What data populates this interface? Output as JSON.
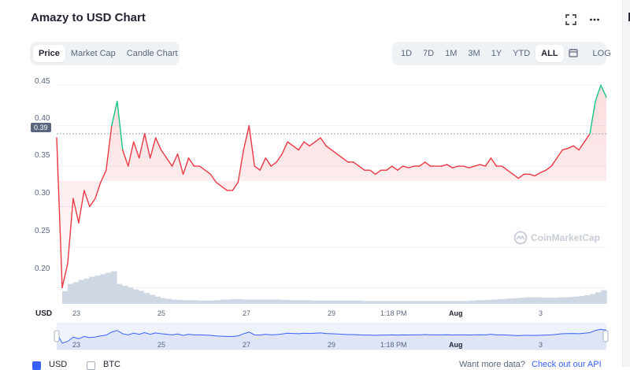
{
  "chart": {
    "title": "Amazy to USD Chart",
    "tabs": [
      "Price",
      "Market Cap",
      "Candle Chart"
    ],
    "active_tab": "Price",
    "ranges": [
      "1D",
      "7D",
      "1M",
      "3M",
      "1Y",
      "YTD",
      "ALL"
    ],
    "active_range": "ALL",
    "log_label": "LOG",
    "current_price_tag": "0.39",
    "currency_axis_label": "USD",
    "watermark": "CoinMarketCap",
    "edge_letter": "L"
  },
  "bottom": {
    "usd_label": "USD",
    "btc_label": "BTC",
    "want_more_text": "Want more data?",
    "api_link_text": "Check out our API"
  },
  "colors": {
    "accent": "#3861fb",
    "up": "#16c784",
    "down": "#ea3943",
    "volume": "#cfd6e4",
    "navigator_fill": "#dde5f7",
    "navigator_line": "#3861fb"
  },
  "icons": [
    "fullscreen-icon",
    "more-icon",
    "calendar-icon",
    "coinmarketcap-logo-icon"
  ],
  "chart_data": {
    "type": "line",
    "title": "Amazy to USD Chart",
    "xlabel": "",
    "ylabel": "USD",
    "ylim": [
      0.18,
      0.455
    ],
    "yticks": [
      "0.45",
      "0.40",
      "0.35",
      "0.30",
      "0.25",
      "0.20"
    ],
    "xticks": [
      "23",
      "25",
      "27",
      "29",
      "1:18 PM",
      "Aug",
      "3"
    ],
    "reference_price": 0.39,
    "series": [
      {
        "x": [
          0,
          1,
          2,
          3,
          4,
          5,
          6,
          7,
          8,
          9,
          10,
          11,
          12,
          13,
          14,
          15,
          16,
          17,
          18,
          19,
          20,
          21,
          22,
          23,
          24,
          25,
          26,
          27,
          28,
          29,
          30,
          31,
          32,
          33,
          34,
          35,
          36,
          37,
          38,
          39,
          40,
          41,
          42,
          43,
          44,
          45,
          46,
          47,
          48,
          49,
          50,
          51,
          52,
          53,
          54,
          55,
          56,
          57,
          58,
          59,
          60,
          61,
          62,
          63,
          64,
          65,
          66,
          67,
          68,
          69,
          70,
          71,
          72,
          73,
          74,
          75,
          76,
          77,
          78,
          79,
          80,
          81,
          82,
          83,
          84,
          85,
          86,
          87,
          88,
          89,
          90,
          91,
          92,
          93,
          94,
          95,
          96,
          97,
          98,
          99,
          100
        ],
        "values": [
          0.385,
          0.2,
          0.23,
          0.31,
          0.28,
          0.32,
          0.3,
          0.31,
          0.33,
          0.345,
          0.4,
          0.43,
          0.37,
          0.35,
          0.38,
          0.36,
          0.39,
          0.36,
          0.385,
          0.37,
          0.36,
          0.35,
          0.365,
          0.34,
          0.36,
          0.35,
          0.35,
          0.345,
          0.34,
          0.33,
          0.325,
          0.32,
          0.32,
          0.33,
          0.37,
          0.4,
          0.35,
          0.345,
          0.36,
          0.35,
          0.355,
          0.365,
          0.38,
          0.375,
          0.37,
          0.38,
          0.375,
          0.38,
          0.385,
          0.375,
          0.37,
          0.365,
          0.36,
          0.355,
          0.355,
          0.35,
          0.345,
          0.345,
          0.34,
          0.345,
          0.345,
          0.35,
          0.345,
          0.35,
          0.348,
          0.35,
          0.35,
          0.355,
          0.35,
          0.35,
          0.35,
          0.352,
          0.348,
          0.35,
          0.35,
          0.348,
          0.35,
          0.352,
          0.35,
          0.36,
          0.35,
          0.35,
          0.345,
          0.34,
          0.335,
          0.34,
          0.34,
          0.338,
          0.342,
          0.345,
          0.35,
          0.36,
          0.37,
          0.372,
          0.375,
          0.37,
          0.38,
          0.39,
          0.43,
          0.45,
          0.435
        ]
      }
    ],
    "volume": [
      0,
      0.35,
      0.55,
      0.6,
      0.66,
      0.7,
      0.75,
      0.78,
      0.82,
      0.86,
      0.9,
      0.55,
      0.5,
      0.45,
      0.4,
      0.36,
      0.3,
      0.25,
      0.2,
      0.16,
      0.14,
      0.12,
      0.11,
      0.1,
      0.1,
      0.1,
      0.09,
      0.09,
      0.09,
      0.1,
      0.12,
      0.12,
      0.13,
      0.13,
      0.12,
      0.12,
      0.12,
      0.12,
      0.12,
      0.12,
      0.12,
      0.11,
      0.11,
      0.1,
      0.1,
      0.1,
      0.1,
      0.09,
      0.09,
      0.09,
      0.09,
      0.09,
      0.09,
      0.09,
      0.09,
      0.09,
      0.08,
      0.08,
      0.08,
      0.08,
      0.08,
      0.08,
      0.08,
      0.08,
      0.08,
      0.08,
      0.08,
      0.08,
      0.08,
      0.08,
      0.08,
      0.08,
      0.08,
      0.08,
      0.08,
      0.08,
      0.09,
      0.1,
      0.1,
      0.11,
      0.12,
      0.13,
      0.14,
      0.15,
      0.16,
      0.17,
      0.18,
      0.18,
      0.18,
      0.17,
      0.17,
      0.17,
      0.18,
      0.18,
      0.19,
      0.2,
      0.22,
      0.24,
      0.27,
      0.32,
      0.38
    ]
  }
}
